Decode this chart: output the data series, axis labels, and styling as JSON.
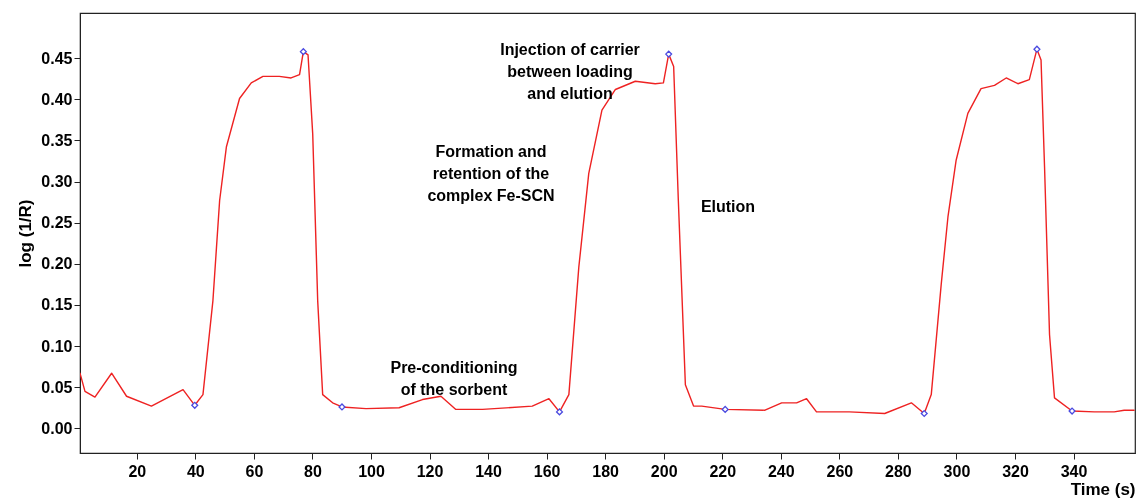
{
  "chart_data": {
    "type": "line",
    "xlabel": "Time (s)",
    "ylabel": "log (1/R)",
    "xlim": [
      0.6,
      361
    ],
    "ylim": [
      -0.03,
      0.505
    ],
    "xticks": [
      20,
      40,
      60,
      80,
      100,
      120,
      140,
      160,
      180,
      200,
      220,
      240,
      260,
      280,
      300,
      320,
      340
    ],
    "yticks": [
      {
        "value": 0,
        "label": "0.00"
      },
      0.05,
      {
        "value": 0.1,
        "label": "0.10"
      },
      0.15,
      {
        "value": 0.2,
        "label": "0.20"
      },
      0.25,
      {
        "value": 0.3,
        "label": "0.30"
      },
      0.35,
      {
        "value": 0.4,
        "label": "0.40"
      },
      0.45
    ],
    "grid": false,
    "series": [
      {
        "color": "#ee2222",
        "marker": "none",
        "line_style": "solid",
        "x": [
          0.6,
          2.3,
          5.7,
          11.4,
          16.5,
          25,
          35.8,
          39.8,
          42.6,
          46,
          48.3,
          50.6,
          52.8,
          55.1,
          59.1,
          63.1,
          68.7,
          72.7,
          75.6,
          76.9,
          78.5,
          80.1,
          81.8,
          83.5,
          86.9,
          90.1,
          98.3,
          109.6,
          117.6,
          123.9,
          129,
          138.1,
          155.1,
          160.8,
          164.4,
          167.6,
          171,
          174.4,
          178.9,
          183.5,
          190.3,
          197.1,
          199.9,
          201.7,
          203.4,
          205,
          207.4,
          210.2,
          213,
          221,
          234.6,
          240.3,
          245.4,
          248.8,
          252.2,
          263.4,
          275.5,
          284.6,
          289,
          291.4,
          294.8,
          297.1,
          299.9,
          303.9,
          308.4,
          313,
          317,
          321,
          324.9,
          327.5,
          328.9,
          330.1,
          331.8,
          333.5,
          339.5,
          347.1,
          353.9,
          357.3,
          360.7
        ],
        "values": [
          0.067,
          0.045,
          0.038,
          0.067,
          0.039,
          0.027,
          0.047,
          0.028,
          0.041,
          0.155,
          0.277,
          0.342,
          0.371,
          0.401,
          0.42,
          0.428,
          0.428,
          0.426,
          0.43,
          0.458,
          0.454,
          0.358,
          0.155,
          0.041,
          0.031,
          0.026,
          0.024,
          0.025,
          0.035,
          0.039,
          0.023,
          0.023,
          0.027,
          0.036,
          0.02,
          0.041,
          0.196,
          0.31,
          0.387,
          0.412,
          0.422,
          0.419,
          0.42,
          0.455,
          0.44,
          0.277,
          0.053,
          0.027,
          0.027,
          0.023,
          0.022,
          0.031,
          0.031,
          0.036,
          0.02,
          0.02,
          0.018,
          0.031,
          0.018,
          0.041,
          0.175,
          0.257,
          0.326,
          0.383,
          0.413,
          0.417,
          0.426,
          0.419,
          0.424,
          0.461,
          0.448,
          0.318,
          0.114,
          0.037,
          0.021,
          0.02,
          0.02,
          0.022,
          0.022
        ]
      },
      {
        "type": "scatter",
        "color": "#4a4ae0",
        "marker": "diamond",
        "x": [
          39.8,
          76.9,
          90.1,
          164.4,
          201.7,
          221,
          289,
          327.5,
          339.5
        ],
        "values": [
          0.028,
          0.458,
          0.026,
          0.02,
          0.455,
          0.023,
          0.018,
          0.461,
          0.021
        ]
      }
    ],
    "annotations": [
      "Injection of carrier\nbetween loading\nand elution",
      "Formation and\nretention of the\ncomplex Fe-SCN",
      "Elution",
      "Pre-conditioning\nof the sorbent"
    ]
  }
}
